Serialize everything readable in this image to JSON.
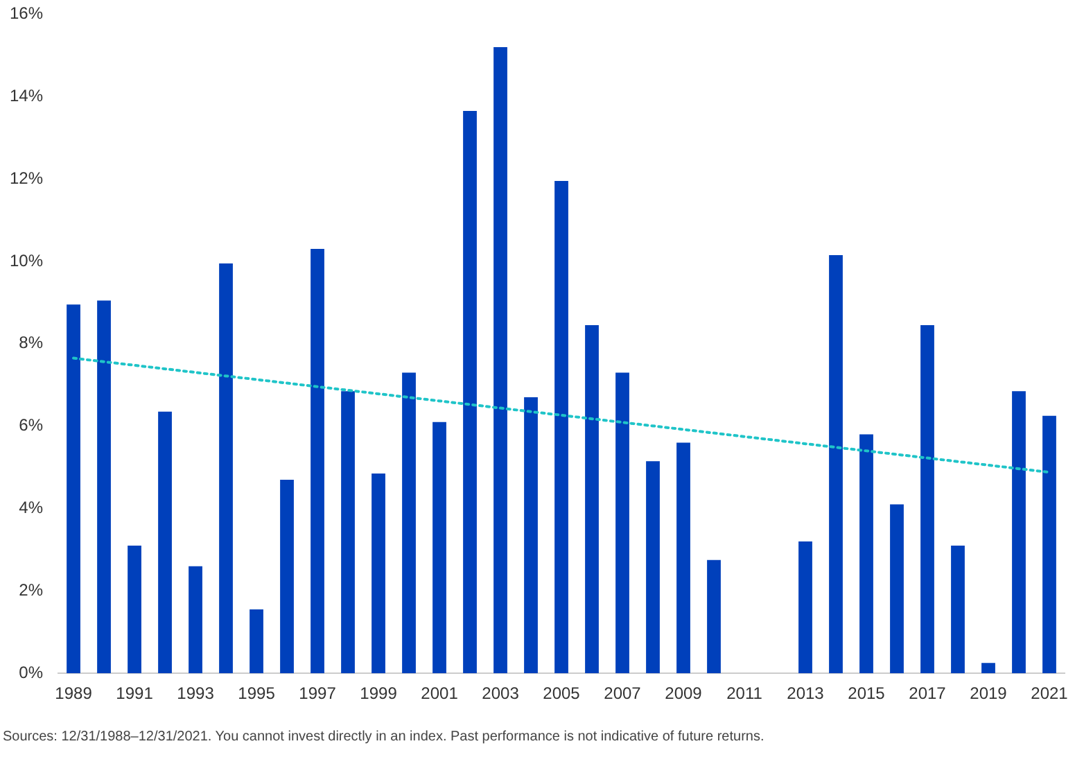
{
  "chart_data": {
    "type": "bar",
    "categories": [
      "1989",
      null,
      "1991",
      null,
      "1993",
      null,
      "1995",
      null,
      "1997",
      null,
      "1999",
      null,
      "2001",
      null,
      "2003",
      null,
      "2005",
      null,
      "2007",
      null,
      "2009",
      null,
      "2011",
      null,
      "2013",
      null,
      "2015",
      null,
      "2017",
      null,
      "2019",
      null,
      "2021"
    ],
    "series": [
      {
        "color": "#0040bb",
        "values": [
          8.95,
          9.05,
          3.1,
          6.35,
          2.6,
          9.95,
          1.55,
          4.7,
          10.3,
          6.85,
          4.85,
          7.3,
          6.1,
          13.65,
          15.2,
          6.7,
          11.95,
          8.45,
          7.3,
          5.15,
          5.6,
          2.75,
          0,
          0,
          3.2,
          10.15,
          5.8,
          4.1,
          8.45,
          3.1,
          0.25,
          6.85,
          6.25
        ]
      },
      {
        "type": "line",
        "color": "#1fc4c8",
        "line_style": "dotted",
        "marker": "none",
        "values": [
          7.65,
          null,
          null,
          null,
          null,
          null,
          null,
          null,
          null,
          null,
          null,
          null,
          null,
          null,
          null,
          null,
          null,
          null,
          null,
          null,
          null,
          null,
          null,
          null,
          null,
          null,
          null,
          null,
          null,
          null,
          null,
          null,
          4.88
        ]
      }
    ],
    "ylim": [
      0,
      16
    ],
    "yticks": [
      {
        "value": 0,
        "label": "0%"
      },
      {
        "value": 2,
        "label": "2%"
      },
      {
        "value": 4,
        "label": "4%"
      },
      {
        "value": 6,
        "label": "6%"
      },
      {
        "value": 8,
        "label": "8%"
      },
      {
        "value": 10,
        "label": "10%"
      },
      {
        "value": 12,
        "label": "12%"
      },
      {
        "value": 14,
        "label": "14%"
      },
      {
        "value": 16,
        "label": "16%"
      }
    ],
    "grid": false,
    "legend": false,
    "annotations": [
      "Sources: 12/31/1988–12/31/2021. You cannot invest directly in an index. Past performance is not indicative of future returns."
    ]
  }
}
